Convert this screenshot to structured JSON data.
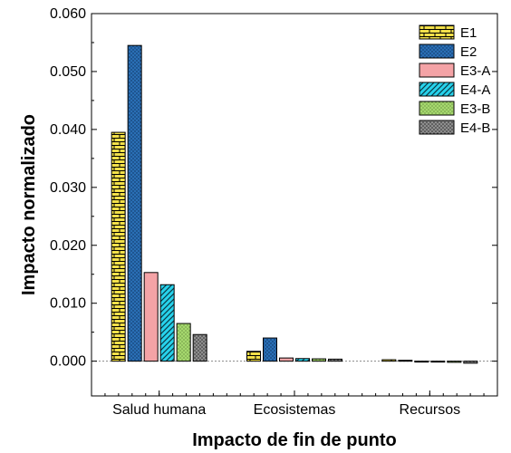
{
  "chart_data": {
    "type": "bar",
    "xlabel": "Impacto de fin de punto",
    "ylabel": "Impacto normalizado",
    "ylim": [
      -0.006,
      0.06
    ],
    "yticks": [
      "0.000",
      "0.010",
      "0.020",
      "0.030",
      "0.040",
      "0.050",
      "0.060"
    ],
    "categories": [
      "Salud humana",
      "Ecosistemas",
      "Recursos"
    ],
    "grid": false,
    "legend_position": "top-right",
    "series": [
      {
        "name": "E1",
        "values": [
          0.0395,
          0.0017,
          0.00025
        ],
        "color": "#f2e04a",
        "pattern": "brick"
      },
      {
        "name": "E2",
        "values": [
          0.0545,
          0.004,
          0.00015
        ],
        "color": "#2a6fb5",
        "pattern": "dots"
      },
      {
        "name": "E3-A",
        "values": [
          0.0153,
          0.00055,
          -5e-05
        ],
        "color": "#f4a3a6",
        "pattern": "solid"
      },
      {
        "name": "E4-A",
        "values": [
          0.0132,
          0.00045,
          -0.0001
        ],
        "color": "#27d3ec",
        "pattern": "hatch"
      },
      {
        "name": "E3-B",
        "values": [
          0.0065,
          0.0004,
          -0.0002
        ],
        "color": "#a6d86e",
        "pattern": "stipple"
      },
      {
        "name": "E4-B",
        "values": [
          0.0046,
          0.00035,
          -0.00035
        ],
        "color": "#8e8e8e",
        "pattern": "dots-dark"
      }
    ]
  }
}
